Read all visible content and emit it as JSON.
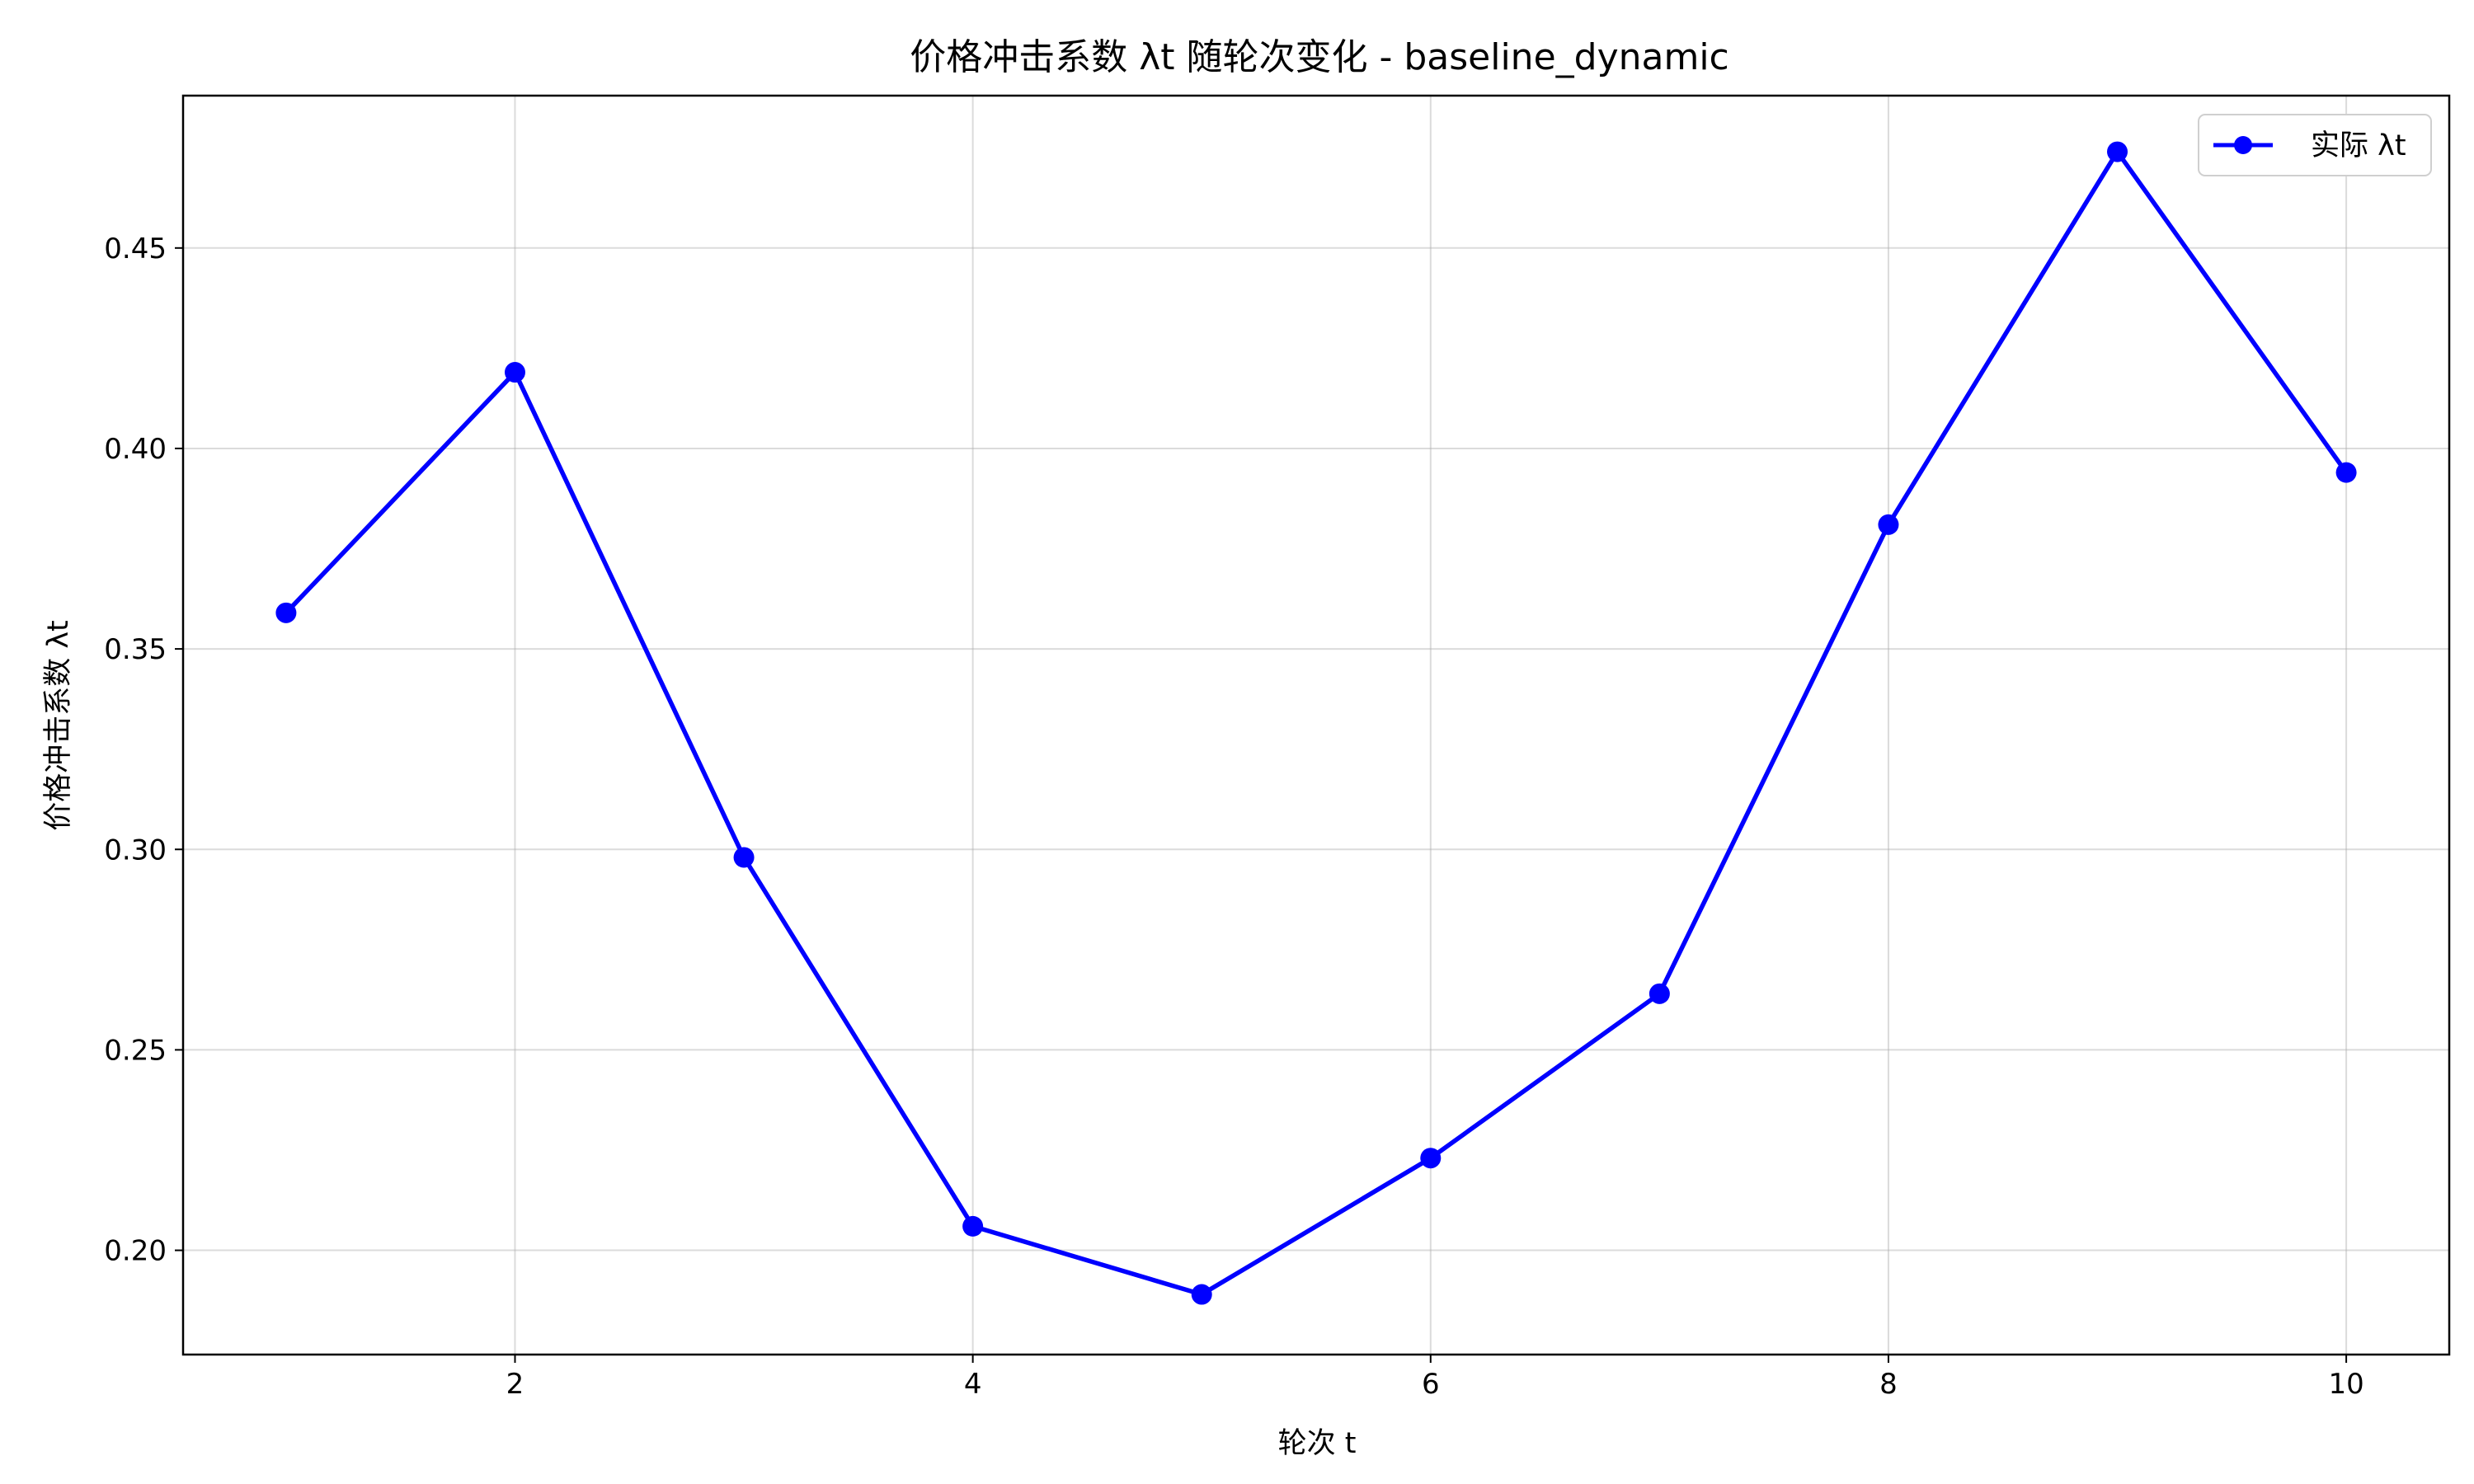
{
  "chart_data": {
    "type": "line",
    "title": "价格冲击系数 λt 随轮次变化 - baseline_dynamic",
    "xlabel": "轮次 t",
    "ylabel": "价格冲击系数 λt",
    "x": [
      1,
      2,
      3,
      4,
      5,
      6,
      7,
      8,
      9,
      10
    ],
    "series": [
      {
        "name": "实际 λt",
        "values": [
          0.359,
          0.419,
          0.298,
          0.206,
          0.189,
          0.223,
          0.264,
          0.381,
          0.474,
          0.394
        ],
        "color": "#0000ff",
        "marker": "circle"
      }
    ],
    "xlim": [
      0.55,
      10.45
    ],
    "ylim": [
      0.174,
      0.488
    ],
    "xticks": [
      2,
      4,
      6,
      8,
      10
    ],
    "yticks": [
      0.2,
      0.25,
      0.3,
      0.35,
      0.4,
      0.45
    ],
    "xtick_labels": [
      "2",
      "4",
      "6",
      "8",
      "10"
    ],
    "ytick_labels": [
      "0.20",
      "0.25",
      "0.30",
      "0.35",
      "0.40",
      "0.45"
    ],
    "grid": true,
    "legend_position": "top-right"
  }
}
